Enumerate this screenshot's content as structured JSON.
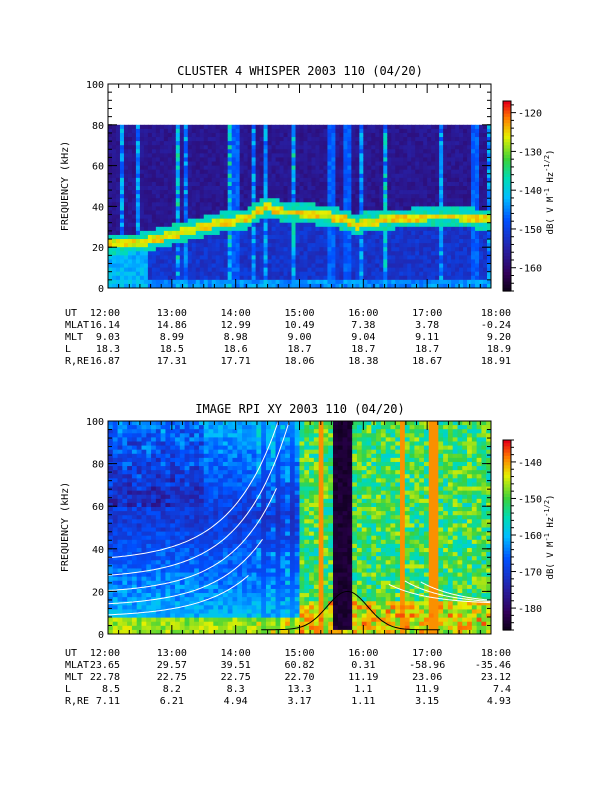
{
  "chart_data": [
    {
      "type": "heatmap",
      "title": "CLUSTER 4 WHISPER 2003 110 (04/20)",
      "ylabel": "FREQUENCY (kHz)",
      "ylim": [
        0,
        100
      ],
      "yticks": [
        "0",
        "20",
        "40",
        "60",
        "80",
        "100"
      ],
      "xticks": [
        "12:00",
        "13:00",
        "14:00",
        "15:00",
        "16:00",
        "17:00",
        "18:00"
      ],
      "colorbar": {
        "label_parts": [
          "dB( V M",
          "-1",
          " Hz",
          "-1/2",
          ")"
        ],
        "range": [
          -166,
          -117
        ],
        "ticks": [
          "-160",
          "-150",
          "-140",
          "-130",
          "-120"
        ]
      },
      "band_line": {
        "t": [
          0.0,
          0.3,
          0.5,
          0.75,
          1.0,
          1.25,
          1.5,
          1.75,
          2.0,
          2.2,
          2.35,
          2.5,
          2.75,
          3.0,
          3.25,
          3.5,
          3.75,
          3.9,
          4.0,
          4.25,
          4.5,
          4.75,
          5.0,
          5.25,
          5.5,
          5.75,
          6.0
        ],
        "kHz": [
          21,
          22,
          22,
          24,
          26,
          28,
          30,
          32,
          33,
          34,
          38,
          40,
          37,
          37,
          36,
          35,
          33,
          30,
          32,
          33,
          34,
          34,
          35,
          35,
          35,
          34,
          33
        ]
      },
      "ephemeris": [
        {
          "label": "UT",
          "values": [
            "12:00",
            "13:00",
            "14:00",
            "15:00",
            "16:00",
            "17:00",
            "18:00"
          ]
        },
        {
          "label": "MLAT",
          "values": [
            "16.14",
            "14.86",
            "12.99",
            "10.49",
            "7.38",
            "3.78",
            "-0.24"
          ]
        },
        {
          "label": "MLT",
          "values": [
            "9.03",
            "8.99",
            "8.98",
            "9.00",
            "9.04",
            "9.11",
            "9.20"
          ]
        },
        {
          "label": "L",
          "values": [
            "18.3",
            "18.5",
            "18.6",
            "18.7",
            "18.7",
            "18.7",
            "18.9"
          ]
        },
        {
          "label": "R,RE",
          "values": [
            "16.87",
            "17.31",
            "17.71",
            "18.06",
            "18.38",
            "18.67",
            "18.91"
          ]
        }
      ]
    },
    {
      "type": "heatmap",
      "title": "IMAGE RPI XY 2003 110 (04/20)",
      "ylabel": "FREQUENCY (kHz)",
      "ylim": [
        0,
        100
      ],
      "yticks": [
        "0",
        "20",
        "40",
        "60",
        "80",
        "100"
      ],
      "xticks": [
        "12:00",
        "13:00",
        "14:00",
        "15:00",
        "16:00",
        "17:00",
        "18:00"
      ],
      "colorbar": {
        "label_parts": [
          "dB( V M",
          "-1",
          " Hz",
          "-1/2",
          ")"
        ],
        "range": [
          -186,
          -134
        ],
        "ticks": [
          "-180",
          "-170",
          "-160",
          "-150",
          "-140"
        ]
      },
      "ephemeris": [
        {
          "label": "UT",
          "values": [
            "12:00",
            "13:00",
            "14:00",
            "15:00",
            "16:00",
            "17:00",
            "18:00"
          ]
        },
        {
          "label": "MLAT",
          "values": [
            "23.65",
            "29.57",
            "39.51",
            "60.82",
            "0.31",
            "-58.96",
            "-35.46"
          ]
        },
        {
          "label": "MLT",
          "values": [
            "22.78",
            "22.75",
            "22.75",
            "22.70",
            "11.19",
            "23.06",
            "23.12"
          ]
        },
        {
          "label": "L",
          "values": [
            "8.5",
            "8.2",
            "8.3",
            "13.3",
            "1.1",
            "11.9",
            "7.4"
          ]
        },
        {
          "label": "R,RE",
          "values": [
            "7.11",
            "6.21",
            "4.94",
            "3.17",
            "1.11",
            "3.15",
            "4.93"
          ]
        }
      ]
    }
  ]
}
